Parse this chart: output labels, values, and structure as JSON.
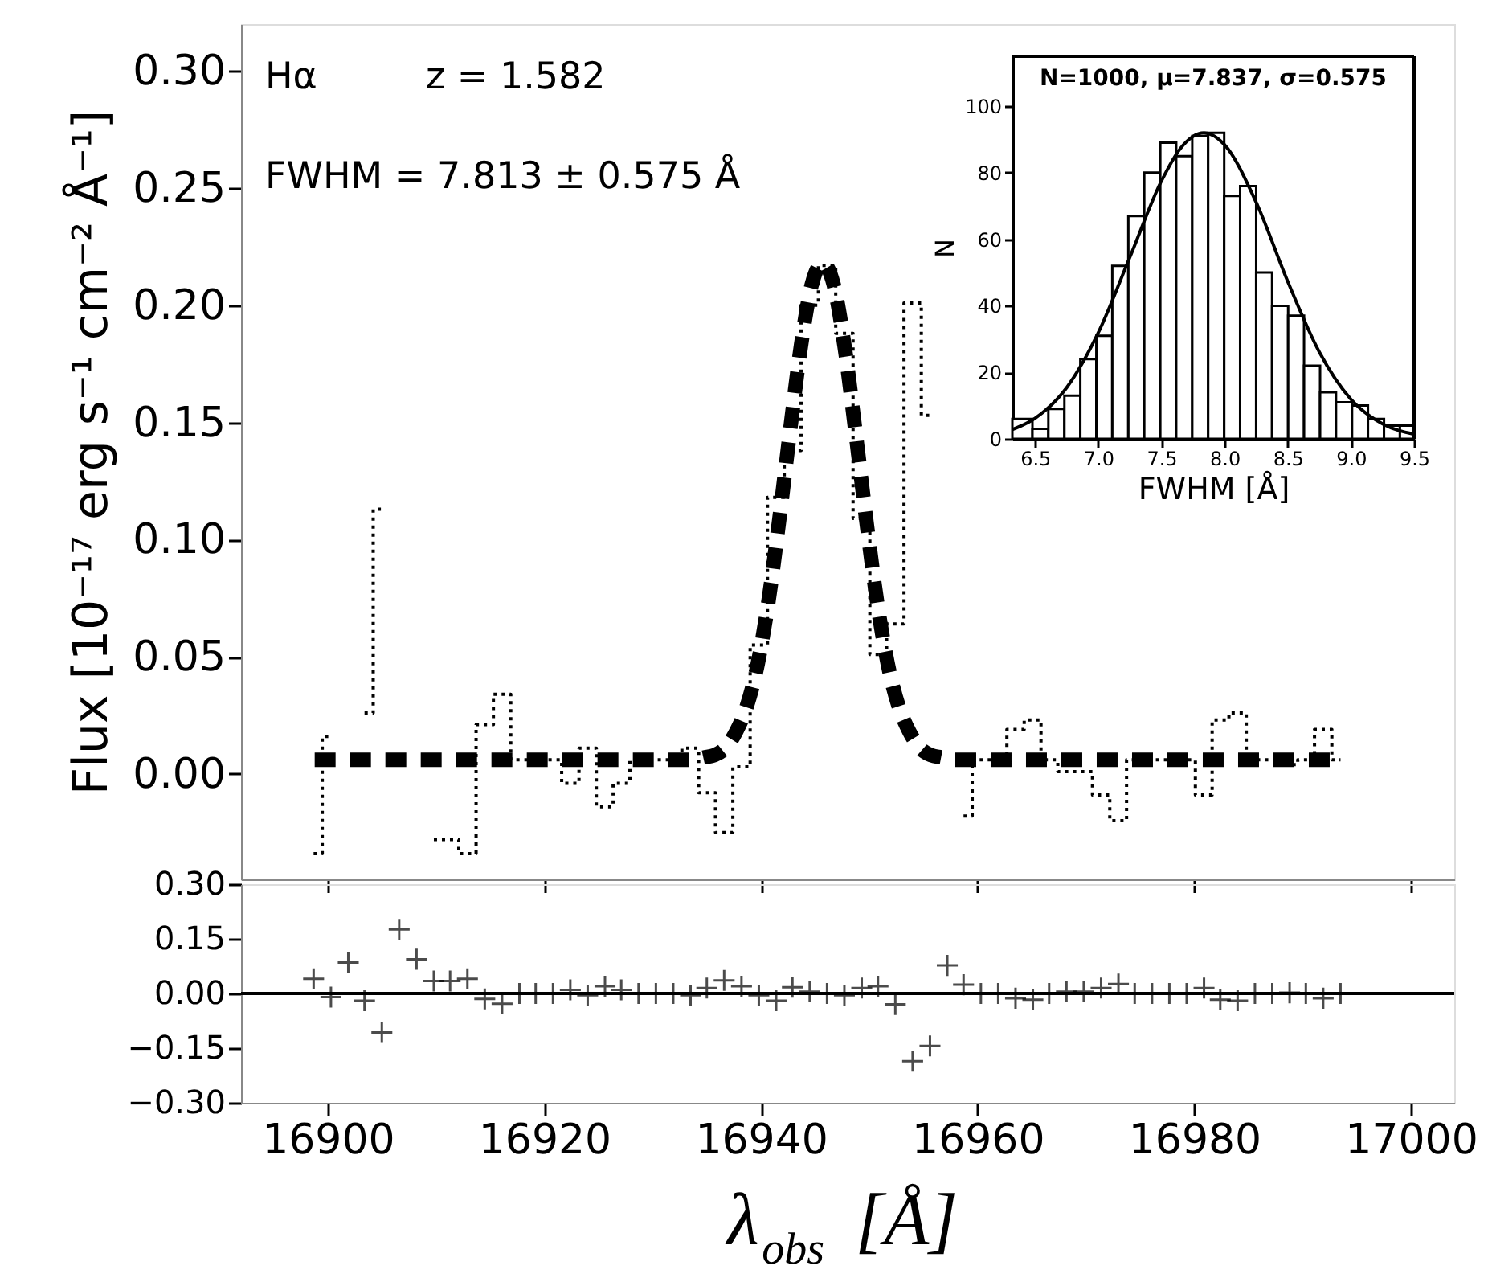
{
  "chart_data": [
    {
      "type": "step",
      "ylabel": "Flux [10⁻¹⁷ erg s⁻¹ cm⁻² Å⁻¹]",
      "annotations": [
        "Hα",
        "z = 1.582",
        "FWHM = 7.813 ± 0.575 Å"
      ],
      "xlim": [
        16892,
        17004
      ],
      "xticks": [
        16900,
        16920,
        16940,
        16960,
        16980,
        17000
      ],
      "ylim": [
        -0.045,
        0.32
      ],
      "yticks": [
        {
          "value": 0,
          "label": "0.00"
        },
        0.05,
        {
          "value": 0.1,
          "label": "0.10"
        },
        0.15,
        {
          "value": 0.2,
          "label": "0.20"
        },
        0.25,
        {
          "value": 0.3,
          "label": "0.30"
        }
      ],
      "tick_labels": "y",
      "grid": false,
      "series": [
        {
          "type": "step",
          "color": "#000000",
          "line_style": "dotted",
          "x": [
            16898.7,
            16900.3,
            16901.9,
            16903.4,
            16905.0,
            16906.6,
            16908.2,
            16909.8,
            16911.3,
            16912.9,
            16914.5,
            16916.1,
            16917.7,
            16919.2,
            16920.8,
            16922.4,
            16924.0,
            16925.6,
            16927.1,
            16928.7,
            16930.3,
            16931.9,
            16933.5,
            16935.0,
            16936.6,
            16938.2,
            16939.8,
            16941.4,
            16942.9,
            16944.5,
            16946.1,
            16947.7,
            16949.3,
            16950.8,
            16952.4,
            16954.0,
            16955.6,
            16957.2,
            16958.7,
            16960.3,
            16961.9,
            16963.5,
            16965.1,
            16966.6,
            16968.2,
            16969.8,
            16971.4,
            16973.0,
            16974.5,
            16976.1,
            16977.7,
            16979.3,
            16980.9,
            16982.4,
            16984.0,
            16985.6,
            16987.2,
            16988.8,
            16990.3,
            16991.9,
            16993.5
          ],
          "values": [
            -0.034,
            0.016,
            null,
            0.026,
            0.113,
            null,
            null,
            -0.028,
            -0.028,
            -0.034,
            0.021,
            0.034,
            0.006,
            0.006,
            0.006,
            -0.004,
            0.011,
            -0.014,
            -0.004,
            0.006,
            0.006,
            0.006,
            0.011,
            -0.008,
            -0.025,
            0.003,
            0.055,
            0.118,
            0.138,
            0.2,
            0.217,
            0.188,
            0.109,
            0.051,
            0.064,
            0.201,
            0.153,
            null,
            -0.018,
            0.006,
            0.006,
            0.019,
            0.023,
            0.006,
            0.001,
            0.001,
            -0.009,
            -0.02,
            0.006,
            0.006,
            0.006,
            0.006,
            -0.009,
            0.023,
            0.026,
            0.006,
            0.006,
            0.004,
            0.006,
            0.019,
            0.006
          ]
        },
        {
          "type": "line",
          "color": "#000000",
          "line_style": "dashed",
          "x": [
            16898.8,
            16933.7,
            16934.7,
            16935.7,
            16936.7,
            16937.7,
            16938.7,
            16939.7,
            16940.7,
            16941.7,
            16942.7,
            16943.7,
            16944.7,
            16945.7,
            16946.7,
            16947.7,
            16948.7,
            16949.7,
            16950.7,
            16951.7,
            16952.7,
            16953.7,
            16954.7,
            16955.7,
            16956.7,
            16957.7,
            16992.9
          ],
          "values": [
            0.006,
            0.006,
            0.007,
            0.008,
            0.011,
            0.018,
            0.029,
            0.047,
            0.074,
            0.109,
            0.147,
            0.183,
            0.209,
            0.218,
            0.209,
            0.183,
            0.147,
            0.109,
            0.074,
            0.047,
            0.029,
            0.018,
            0.011,
            0.008,
            0.007,
            0.006,
            0.006
          ]
        }
      ]
    },
    {
      "type": "scatter",
      "xlabel": "λ$_{obs}$ [Å]",
      "marker": "cross",
      "xlim": [
        16892,
        17004
      ],
      "xticks": [
        16900,
        16920,
        16940,
        16960,
        16980,
        17000
      ],
      "ylim": [
        -0.3,
        0.3
      ],
      "yticks": [
        {
          "value": -0.3,
          "label": "−0.30"
        },
        {
          "value": -0.15,
          "label": "−0.15"
        },
        {
          "value": 0,
          "label": "0.00"
        },
        0.15,
        {
          "value": 0.3,
          "label": "0.30"
        }
      ],
      "grid": false,
      "ref_lines": [
        {
          "axis": "y",
          "value": 0,
          "color": "#000000"
        }
      ],
      "x": [
        16898.7,
        16900.3,
        16901.9,
        16903.4,
        16905.0,
        16906.6,
        16908.2,
        16909.8,
        16911.3,
        16912.9,
        16914.5,
        16916.1,
        16917.7,
        16919.2,
        16920.8,
        16922.4,
        16924.0,
        16925.6,
        16927.1,
        16928.7,
        16930.3,
        16931.9,
        16933.5,
        16935.0,
        16936.6,
        16938.2,
        16939.8,
        16941.4,
        16942.9,
        16944.5,
        16946.1,
        16947.7,
        16949.3,
        16950.8,
        16952.4,
        16954.0,
        16955.6,
        16957.2,
        16958.7,
        16960.3,
        16961.9,
        16963.5,
        16965.1,
        16966.6,
        16968.2,
        16969.8,
        16971.4,
        16973.0,
        16974.5,
        16976.1,
        16977.7,
        16979.3,
        16980.9,
        16982.4,
        16984.0,
        16985.6,
        16987.2,
        16988.8,
        16990.3,
        16991.9,
        16993.5
      ],
      "series": [
        {
          "color": "#000000",
          "values": [
            0.04,
            -0.01,
            0.085,
            -0.02,
            -0.107,
            0.176,
            0.094,
            0.034,
            0.034,
            0.04,
            -0.015,
            -0.028,
            0,
            0,
            0,
            0.01,
            -0.005,
            0.02,
            0.01,
            0,
            0,
            0,
            -0.005,
            0.015,
            0.036,
            0.02,
            -0.005,
            -0.02,
            0.017,
            0.005,
            0,
            -0.005,
            0.015,
            0.02,
            -0.03,
            -0.186,
            -0.144,
            0.077,
            0.024,
            0,
            0,
            -0.013,
            -0.017,
            0,
            0.005,
            0.005,
            0.015,
            0.026,
            0,
            0,
            0,
            0,
            0.015,
            -0.017,
            -0.02,
            0,
            0,
            0.002,
            0,
            -0.013,
            0
          ]
        }
      ]
    },
    {
      "type": "histogram",
      "title": "N=1000, μ=7.837, σ=0.575",
      "xlabel": "FWHM [Å]",
      "ylabel": "N",
      "xlim": [
        6.32,
        9.5
      ],
      "xticks": [
        6.5,
        {
          "value": 7,
          "label": "7.0"
        },
        7.5,
        {
          "value": 8,
          "label": "8.0"
        },
        8.5,
        {
          "value": 9,
          "label": "9.0"
        },
        9.5
      ],
      "ylim": [
        0,
        115
      ],
      "yticks": [
        0,
        20,
        40,
        60,
        80,
        100
      ],
      "grid": false,
      "color": "#000000",
      "bins": [
        6.32,
        6.479,
        6.605,
        6.732,
        6.858,
        6.985,
        7.111,
        7.238,
        7.364,
        7.491,
        7.617,
        7.744,
        7.87,
        7.997,
        8.123,
        8.25,
        8.376,
        8.503,
        8.629,
        8.756,
        8.882,
        9.009,
        9.135,
        9.262,
        9.388,
        9.5
      ],
      "values": [
        6,
        3,
        9,
        13,
        24,
        31,
        52,
        67,
        80,
        89,
        85,
        91,
        92,
        73,
        76,
        50,
        40,
        37,
        22,
        14,
        11,
        10,
        6,
        4,
        4
      ],
      "series": [
        {
          "type": "line",
          "color": "#000000",
          "line_style": "solid",
          "x": [
            6.32,
            6.5,
            6.75,
            7.0,
            7.25,
            7.5,
            7.65,
            7.837,
            8.0,
            8.25,
            8.5,
            8.75,
            9.0,
            9.25,
            9.5
          ],
          "values": [
            2.8,
            6.2,
            15.4,
            31.9,
            54.6,
            77.5,
            87.3,
            92,
            88.4,
            71.1,
            47.3,
            26.1,
            11.9,
            4.5,
            1.4
          ]
        }
      ]
    }
  ]
}
